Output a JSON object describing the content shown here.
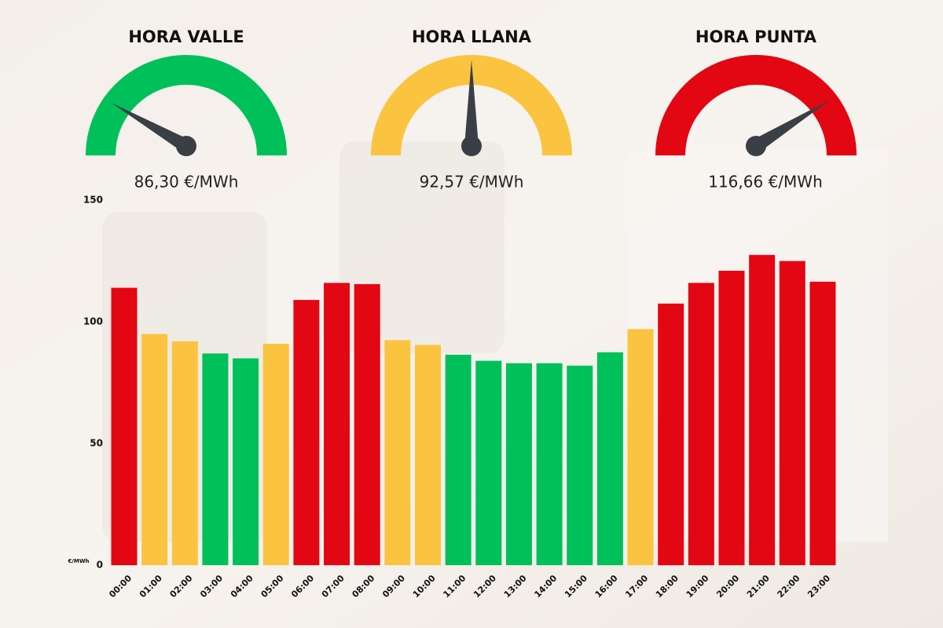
{
  "gauges": [
    {
      "title": "HORA VALLE",
      "value_label": "86,30 €/MWh",
      "color": "#00c05a"
    },
    {
      "title": "HORA LLANA",
      "value_label": "92,57 €/MWh",
      "color": "#fbc440"
    },
    {
      "title": "HORA PUNTA",
      "value_label": "116,66 €/MWh",
      "color": "#e30613"
    }
  ],
  "chart_data": {
    "type": "bar",
    "y_unit": "€/MWh",
    "categories": [
      "00:00",
      "01:00",
      "02:00",
      "03:00",
      "04:00",
      "05:00",
      "06:00",
      "07:00",
      "08:00",
      "09:00",
      "10:00",
      "11:00",
      "12:00",
      "13:00",
      "14:00",
      "15:00",
      "16:00",
      "17:00",
      "18:00",
      "19:00",
      "20:00",
      "21:00",
      "22:00",
      "23:00"
    ],
    "values": [
      114,
      95,
      92,
      87,
      85,
      91,
      109,
      116,
      115.5,
      92.5,
      90.5,
      86.5,
      84,
      83,
      83,
      82,
      87.5,
      97,
      107.5,
      116,
      121,
      127.5,
      125,
      116.5
    ],
    "colors": [
      "#e30613",
      "#fbc440",
      "#fbc440",
      "#00c05a",
      "#00c05a",
      "#fbc440",
      "#e30613",
      "#e30613",
      "#e30613",
      "#fbc440",
      "#fbc440",
      "#00c05a",
      "#00c05a",
      "#00c05a",
      "#00c05a",
      "#00c05a",
      "#00c05a",
      "#fbc440",
      "#e30613",
      "#e30613",
      "#e30613",
      "#e30613",
      "#e30613",
      "#e30613"
    ],
    "ylim": [
      0,
      150
    ],
    "yticks": [
      0,
      50,
      100,
      150
    ]
  }
}
